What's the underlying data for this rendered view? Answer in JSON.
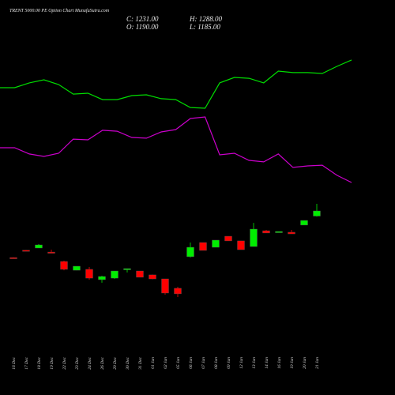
{
  "chart_data": {
    "type": "candlestick",
    "title": "TRENT 5000.00 PE Option  Chart MunafaSutra.com",
    "header": {
      "close": "C: 1231.00",
      "high": "H: 1288.00",
      "open": "O: 1190.00",
      "low": "L: 1185.00"
    },
    "categories": [
      "16 Dec",
      "17 Dec",
      "18 Dec",
      "19 Dec",
      "22 Dec",
      "23 Dec",
      "24 Dec",
      "26 Dec",
      "29 Dec",
      "30 Dec",
      "31 Dec",
      "01 Jan",
      "02 Jan",
      "05 Jan",
      "06 Jan",
      "07 Jan",
      "08 Jan",
      "09 Jan",
      "12 Jan",
      "13 Jan",
      "14 Jan",
      "16 Jan",
      "19 Jan",
      "20 Jan",
      "21 Jan"
    ],
    "open": [
      859,
      918,
      935,
      903,
      828,
      758,
      765,
      683,
      695,
      765,
      752,
      721,
      689,
      614,
      866,
      979,
      941,
      1029,
      992,
      947,
      1073,
      1061,
      1061,
      1118,
      1190
    ],
    "high": [
      861,
      920,
      966,
      922,
      834,
      790,
      784,
      714,
      752,
      771,
      752,
      724,
      689,
      626,
      979,
      979,
      998,
      1029,
      992,
      1136,
      1080,
      1067,
      1080,
      1155,
      1288
    ],
    "low": [
      853,
      914,
      935,
      897,
      758,
      758,
      683,
      658,
      689,
      740,
      702,
      686,
      563,
      544,
      859,
      916,
      941,
      992,
      922,
      947,
      1055,
      1061,
      1048,
      1118,
      1185
    ],
    "close": [
      855,
      915,
      960,
      899,
      765,
      790,
      695,
      708,
      752,
      771,
      702,
      689,
      576,
      570,
      941,
      916,
      998,
      992,
      922,
      1086,
      1055,
      1067,
      1048,
      1155,
      1231
    ],
    "up_color": "#00ee00",
    "down_color": "#ff0000",
    "series": [
      {
        "color": "#00dd00",
        "values": [
          2214,
          2214,
          2252,
          2277,
          2239,
          2163,
          2170,
          2119,
          2119,
          2151,
          2157,
          2126,
          2119,
          2056,
          2050,
          2252,
          2296,
          2289,
          2252,
          2346,
          2334,
          2334,
          2327,
          2384,
          2435
        ]
      },
      {
        "color": "#cc00cc",
        "values": [
          1735,
          1735,
          1685,
          1666,
          1691,
          1804,
          1798,
          1874,
          1867,
          1817,
          1811,
          1861,
          1880,
          1968,
          1981,
          1678,
          1691,
          1634,
          1622,
          1685,
          1578,
          1590,
          1596,
          1515,
          1458
        ]
      }
    ],
    "ylim": [
      100,
      2900
    ]
  }
}
